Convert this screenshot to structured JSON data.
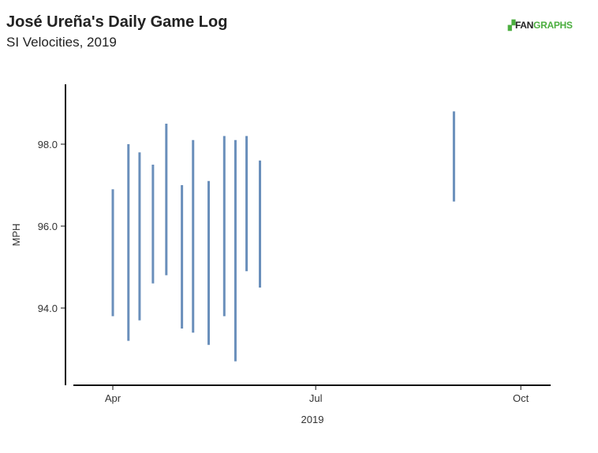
{
  "header": {
    "title": "José Ureña's Daily Game Log",
    "subtitle": "SI Velocities, 2019"
  },
  "logo": {
    "text": "FANGRAPHS",
    "part1": "FAN",
    "part2": "GRAPHS"
  },
  "chart_data": {
    "type": "range-bar",
    "title": "José Ureña's Daily Game Log",
    "subtitle": "SI Velocities, 2019",
    "xlabel": "2019",
    "ylabel": "MPH",
    "x_ticks": [
      {
        "date": "2019-04-01",
        "label": "Apr"
      },
      {
        "date": "2019-07-01",
        "label": "Jul"
      },
      {
        "date": "2019-10-01",
        "label": "Oct"
      }
    ],
    "y_ticks": [
      94.0,
      96.0,
      98.0
    ],
    "ylim": [
      92.0,
      100.0
    ],
    "grid": false,
    "color": "#6a8fbb",
    "series": [
      {
        "date": "2019-04-01",
        "min": 93.8,
        "max": 96.9
      },
      {
        "date": "2019-04-08",
        "min": 93.2,
        "max": 98.0
      },
      {
        "date": "2019-04-13",
        "min": 93.7,
        "max": 97.8
      },
      {
        "date": "2019-04-19",
        "min": 94.6,
        "max": 97.5
      },
      {
        "date": "2019-04-25",
        "min": 94.8,
        "max": 98.5
      },
      {
        "date": "2019-05-02",
        "min": 93.5,
        "max": 97.0
      },
      {
        "date": "2019-05-07",
        "min": 93.4,
        "max": 98.1
      },
      {
        "date": "2019-05-14",
        "min": 93.1,
        "max": 97.1
      },
      {
        "date": "2019-05-21",
        "min": 93.8,
        "max": 98.2
      },
      {
        "date": "2019-05-26",
        "min": 92.7,
        "max": 98.1
      },
      {
        "date": "2019-05-31",
        "min": 94.9,
        "max": 98.2
      },
      {
        "date": "2019-06-06",
        "min": 94.5,
        "max": 97.6
      },
      {
        "date": "2019-09-01",
        "min": 96.6,
        "max": 98.8
      }
    ]
  }
}
